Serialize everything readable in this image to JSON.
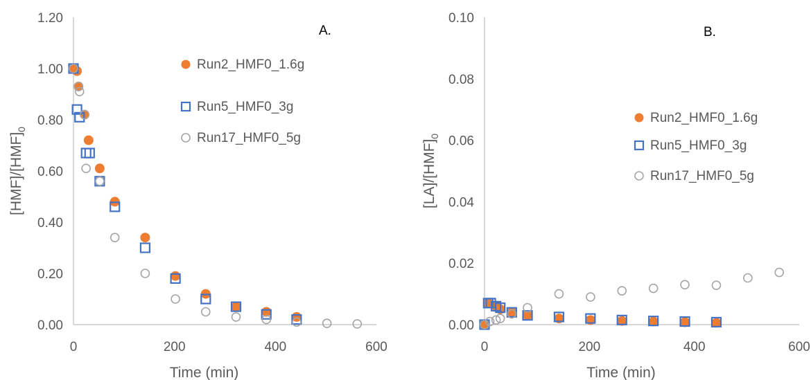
{
  "colors": {
    "Run2_HMF0_1.6g": "#ED7D31",
    "Run5_HMF0_3g": "#4472C4",
    "Run17_HMF0_5g": "#A5A5A5",
    "axis": "#BFBFBF",
    "text": "#595959"
  },
  "chart_data": [
    {
      "type": "scatter",
      "panel_label": "A.",
      "xlabel": "Time (min)",
      "ylabel": "[HMF]/[HMF]0",
      "ylabel_main": "[HMF]/[HMF]",
      "ylabel_sub": "0",
      "xlim": [
        0,
        600
      ],
      "ylim": [
        0,
        1.2
      ],
      "xticks": [
        "0",
        "200",
        "400",
        "600"
      ],
      "yticks": [
        "0.00",
        "0.20",
        "0.40",
        "0.60",
        "0.80",
        "1.00",
        "1.20"
      ],
      "grid": false,
      "legend_position": "upper-right",
      "series": [
        {
          "name": "Run2_HMF0_1.6g",
          "marker": "filled-circle",
          "x": [
            0,
            7,
            10,
            22,
            30,
            52,
            82,
            142,
            202,
            262,
            322,
            382,
            442
          ],
          "y": [
            1.0,
            0.99,
            0.93,
            0.82,
            0.72,
            0.61,
            0.48,
            0.34,
            0.19,
            0.12,
            0.07,
            0.05,
            0.03
          ]
        },
        {
          "name": "Run5_HMF0_3g",
          "marker": "open-square",
          "x": [
            0,
            7,
            12,
            25,
            32,
            52,
            82,
            142,
            202,
            262,
            322,
            382,
            442
          ],
          "y": [
            1.0,
            0.84,
            0.81,
            0.67,
            0.67,
            0.56,
            0.46,
            0.3,
            0.18,
            0.1,
            0.07,
            0.04,
            0.02
          ]
        },
        {
          "name": "Run17_HMF0_5g",
          "marker": "open-circle",
          "x": [
            0,
            10,
            12,
            22,
            25,
            52,
            82,
            142,
            202,
            262,
            322,
            382,
            442,
            502,
            562
          ],
          "y": [
            1.0,
            0.93,
            0.91,
            0.82,
            0.61,
            0.56,
            0.34,
            0.2,
            0.1,
            0.05,
            0.03,
            0.02,
            0.01,
            0.005,
            0.003
          ]
        }
      ]
    },
    {
      "type": "scatter",
      "panel_label": "B.",
      "xlabel": "Time (min)",
      "ylabel": "[LA]/[HMF]0",
      "ylabel_main": "[LA]/[HMF]",
      "ylabel_sub": "0",
      "xlim": [
        0,
        600
      ],
      "ylim": [
        0,
        0.1
      ],
      "xticks": [
        "0",
        "200",
        "400",
        "600"
      ],
      "yticks": [
        "0.00",
        "0.02",
        "0.04",
        "0.06",
        "0.08",
        "0.10"
      ],
      "grid": false,
      "legend_position": "right",
      "series": [
        {
          "name": "Run2_HMF0_1.6g",
          "marker": "filled-circle",
          "x": [
            0,
            7,
            22,
            30,
            52,
            82,
            142,
            202,
            262,
            322,
            382,
            442
          ],
          "y": [
            0.0,
            0.007,
            0.006,
            0.005,
            0.004,
            0.003,
            0.002,
            0.0015,
            0.0012,
            0.001,
            0.0008,
            0.0006
          ]
        },
        {
          "name": "Run5_HMF0_3g",
          "marker": "open-square",
          "x": [
            0,
            7,
            12,
            22,
            30,
            52,
            82,
            142,
            202,
            262,
            322,
            382,
            442
          ],
          "y": [
            0.0,
            0.007,
            0.007,
            0.006,
            0.0055,
            0.004,
            0.003,
            0.0025,
            0.002,
            0.0015,
            0.0012,
            0.001,
            0.0008
          ]
        },
        {
          "name": "Run17_HMF0_5g",
          "marker": "open-circle",
          "x": [
            0,
            10,
            22,
            30,
            52,
            82,
            142,
            202,
            262,
            322,
            382,
            442,
            502,
            562
          ],
          "y": [
            0.0,
            0.001,
            0.0015,
            0.002,
            0.0035,
            0.0055,
            0.01,
            0.009,
            0.011,
            0.0118,
            0.013,
            0.0128,
            0.0152,
            0.017
          ]
        }
      ]
    }
  ]
}
